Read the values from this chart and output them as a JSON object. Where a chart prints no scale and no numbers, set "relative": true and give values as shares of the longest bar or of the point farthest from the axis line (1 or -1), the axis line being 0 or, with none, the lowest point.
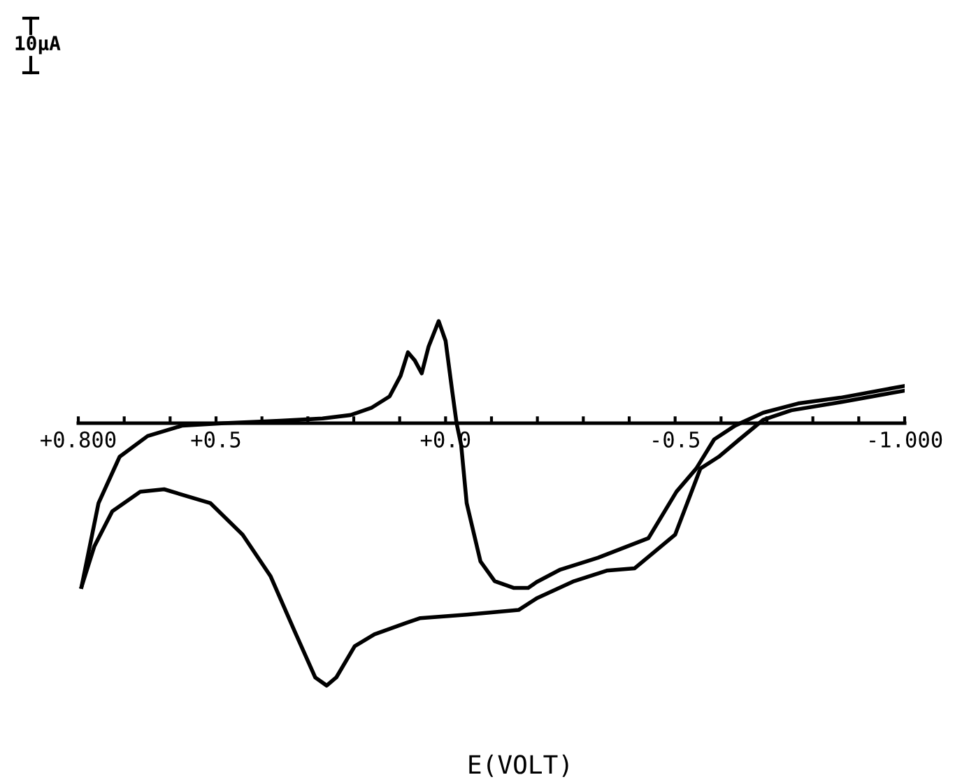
{
  "chart_data": {
    "type": "line",
    "relative": true,
    "xlabel": "E(VOLT)",
    "annotations": [
      "10µA"
    ],
    "xlim": [
      0.8,
      -1.0
    ],
    "xticks": [
      {
        "value": 0.8,
        "label": "+0.800"
      },
      {
        "value": 0.7,
        "label": null
      },
      {
        "value": 0.6,
        "label": null
      },
      {
        "value": 0.5,
        "label": "+0.5"
      },
      {
        "value": 0.4,
        "label": null
      },
      {
        "value": 0.3,
        "label": null
      },
      {
        "value": 0.2,
        "label": null
      },
      {
        "value": 0.1,
        "label": null
      },
      {
        "value": 0.0,
        "label": "+0.0"
      },
      {
        "value": -0.1,
        "label": null
      },
      {
        "value": -0.2,
        "label": null
      },
      {
        "value": -0.3,
        "label": null
      },
      {
        "value": -0.4,
        "label": null
      },
      {
        "value": -0.5,
        "label": "-0.5"
      },
      {
        "value": -0.6,
        "label": null
      },
      {
        "value": -0.7,
        "label": null
      },
      {
        "value": -0.8,
        "label": null
      },
      {
        "value": -0.9,
        "label": null
      },
      {
        "value": -1.0,
        "label": "-1.000"
      }
    ],
    "grid": false,
    "legend": false,
    "marker": "none",
    "line_style": "solid",
    "series": [
      {
        "color": "#000000",
        "x": [
          0.793,
          0.756,
          0.71,
          0.649,
          0.573,
          0.482,
          0.36,
          0.268,
          0.207,
          0.162,
          0.122,
          0.098,
          0.082,
          0.067,
          0.052,
          0.037,
          0.015,
          0.0,
          -0.015,
          -0.024,
          -0.034,
          -0.046,
          -0.076,
          -0.107,
          -0.149,
          -0.18,
          -0.198,
          -0.25,
          -0.332,
          -0.442,
          -0.503,
          -0.546,
          -0.585,
          -0.631,
          -0.692,
          -0.768,
          -0.86,
          -1.0
        ],
        "values": [
          -0.624,
          -0.305,
          -0.128,
          -0.049,
          -0.009,
          0.0,
          0.009,
          0.018,
          0.031,
          0.058,
          0.102,
          0.181,
          0.27,
          0.239,
          0.19,
          0.292,
          0.389,
          0.314,
          0.115,
          0.0,
          -0.084,
          -0.305,
          -0.527,
          -0.602,
          -0.628,
          -0.628,
          -0.606,
          -0.558,
          -0.513,
          -0.438,
          -0.261,
          -0.173,
          -0.062,
          -0.009,
          0.04,
          0.075,
          0.097,
          0.142
        ]
      },
      {
        "color": "#000000",
        "x": [
          -1.0,
          -0.86,
          -0.753,
          -0.692,
          -0.64,
          -0.595,
          -0.555,
          -0.5,
          -0.412,
          -0.351,
          -0.28,
          -0.198,
          -0.159,
          -0.046,
          0.055,
          0.085,
          0.155,
          0.198,
          0.238,
          0.259,
          0.284,
          0.329,
          0.381,
          0.442,
          0.512,
          0.613,
          0.665,
          0.726,
          0.765,
          0.793
        ],
        "values": [
          0.124,
          0.08,
          0.049,
          0.013,
          -0.062,
          -0.128,
          -0.173,
          -0.425,
          -0.553,
          -0.562,
          -0.602,
          -0.668,
          -0.712,
          -0.73,
          -0.743,
          -0.761,
          -0.805,
          -0.85,
          -0.969,
          -1.0,
          -0.969,
          -0.792,
          -0.584,
          -0.425,
          -0.305,
          -0.252,
          -0.261,
          -0.336,
          -0.469,
          -0.624
        ]
      }
    ]
  }
}
